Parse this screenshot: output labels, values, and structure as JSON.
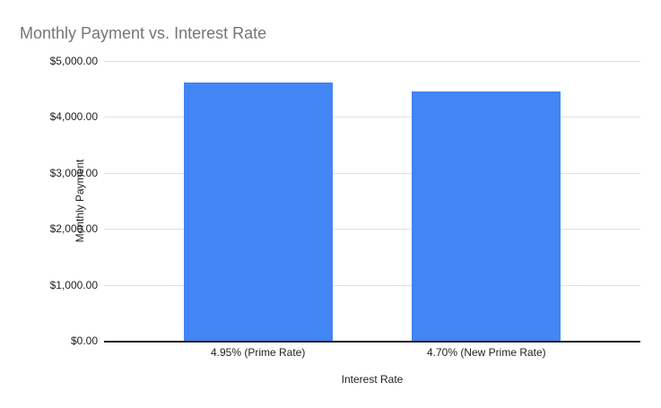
{
  "window": {
    "background": "#ffffff"
  },
  "chart_data": {
    "type": "bar",
    "title": "Monthly Payment vs. Interest Rate",
    "xlabel": "Interest Rate",
    "ylabel": "Monthly Payment",
    "categories": [
      "4.95% (Prime Rate)",
      "4.70% (New Prime Rate)"
    ],
    "values": [
      4620,
      4455
    ],
    "ylim": [
      0,
      5000
    ],
    "yticks": [
      {
        "value": 5000,
        "label": "$5,000.00"
      },
      {
        "value": 4000,
        "label": "$4,000.00"
      },
      {
        "value": 3000,
        "label": "$3,000.00"
      },
      {
        "value": 2000,
        "label": "$2,000.00"
      },
      {
        "value": 1000,
        "label": "$1,000.00"
      },
      {
        "value": 0,
        "label": "$0.00"
      }
    ],
    "grid": true,
    "legend": "none",
    "bar_color": "#4285f4"
  },
  "colors": {
    "bar": "#4285f4",
    "title_text": "#757575",
    "axis_text": "#212121",
    "gridline": "#e0e0e0",
    "axis_line": "#212121",
    "background": "#ffffff"
  }
}
